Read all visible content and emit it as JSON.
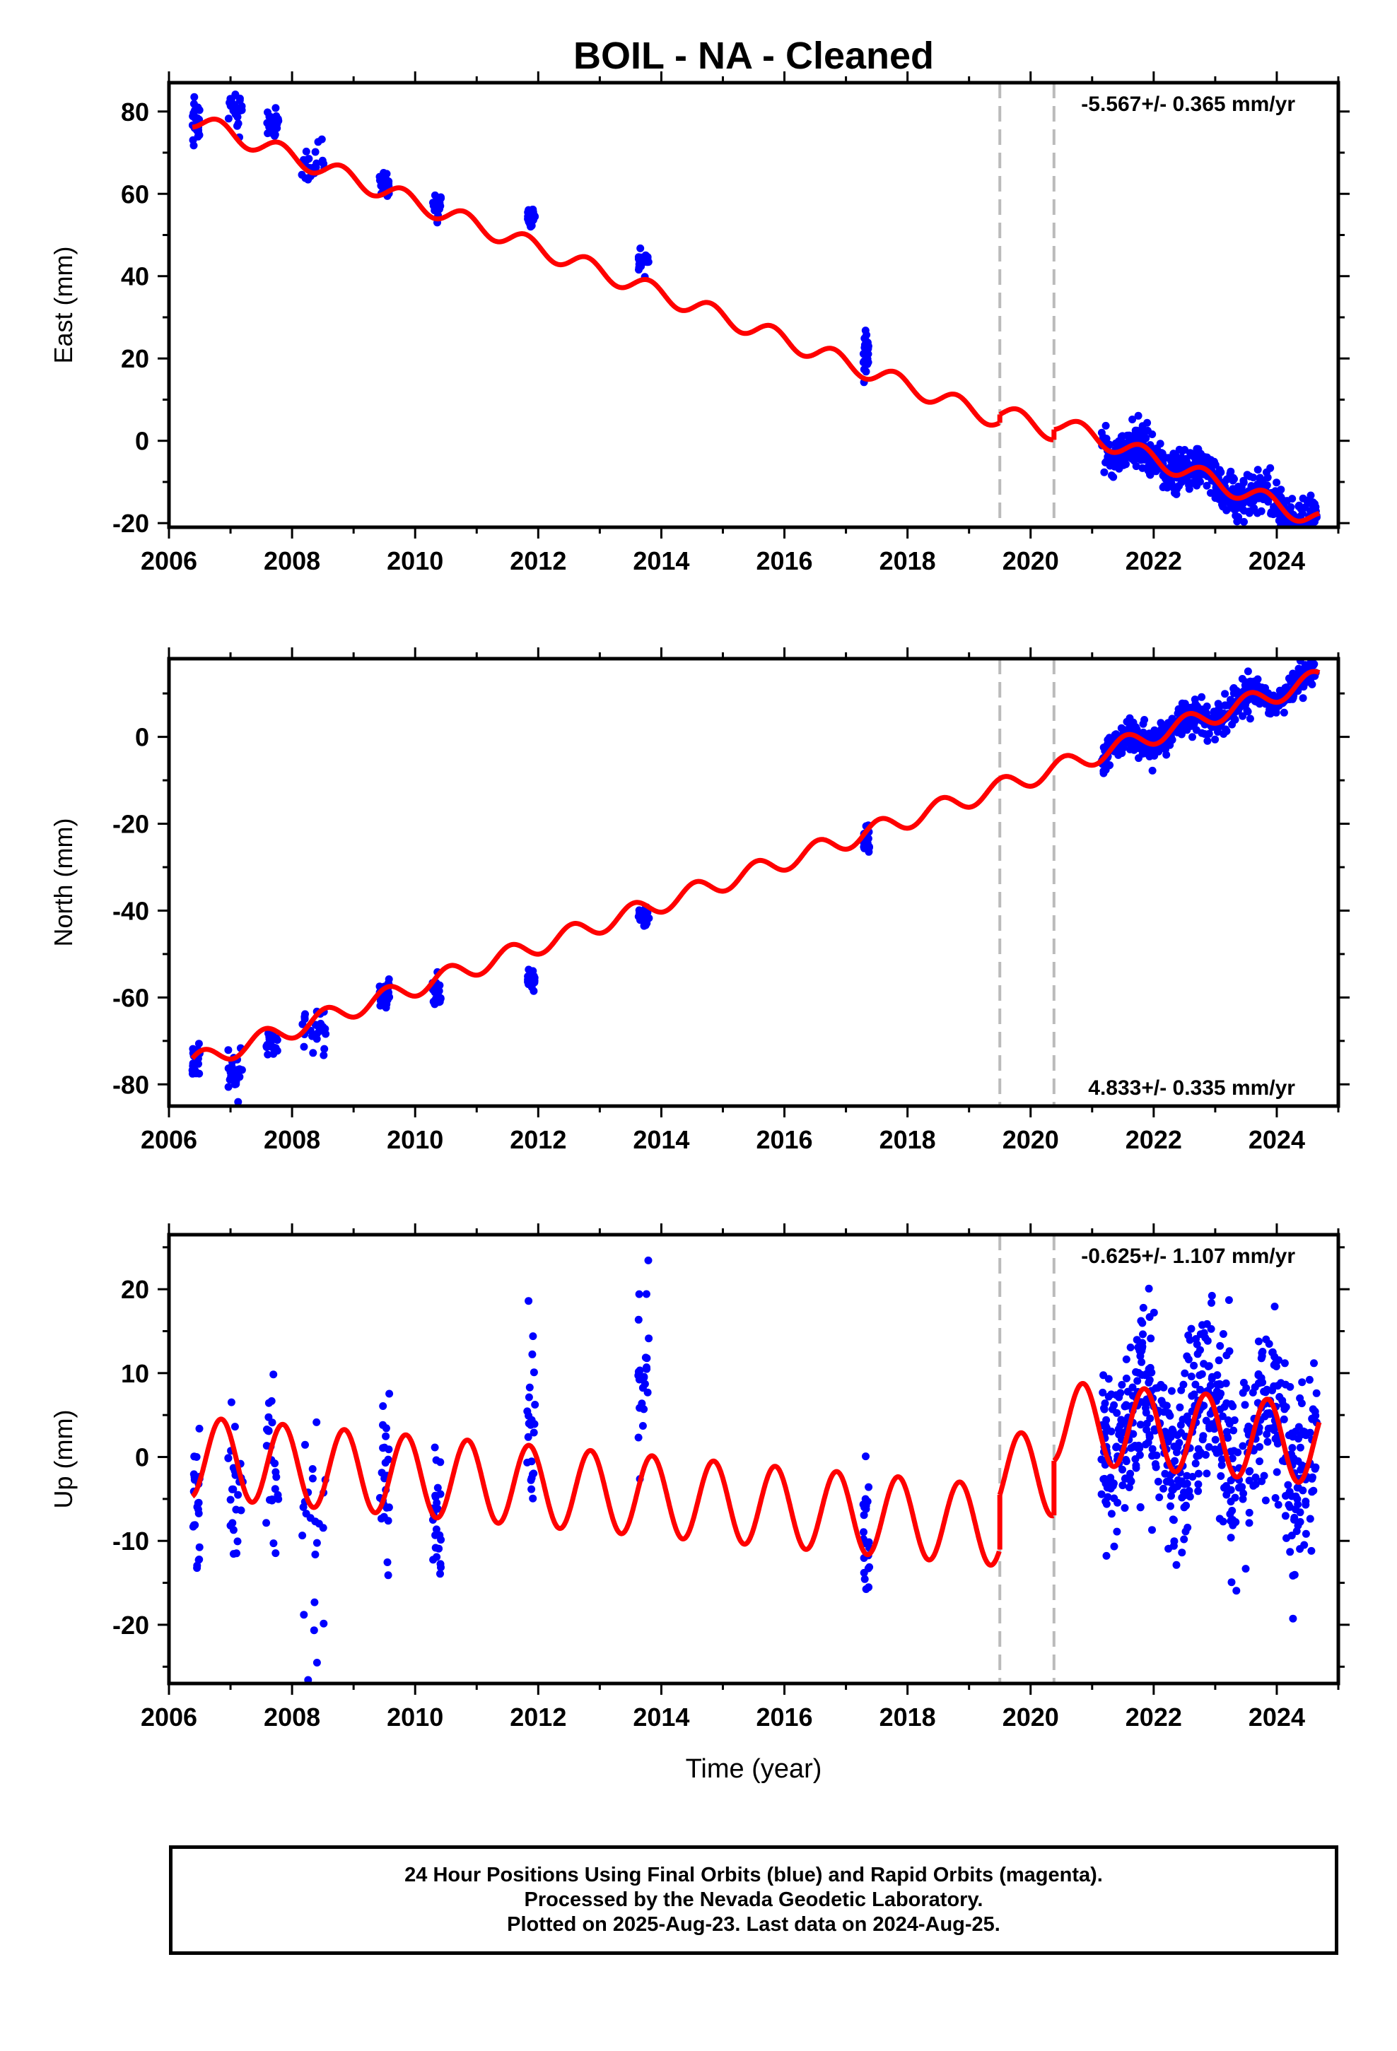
{
  "colors": {
    "final": "#0000ff",
    "model": "#ff0000",
    "dashed": "#bbbbbb"
  },
  "footer": {
    "line1": "24 Hour Positions Using Final Orbits (blue) and Rapid Orbits (magenta).",
    "line2": "Processed by the Nevada Geodetic Laboratory.",
    "line3": "Plotted on 2025-Aug-23. Last data on 2024-Aug-25."
  },
  "chart_data": [
    {
      "type": "scatter",
      "title": "BOIL  - NA - Cleaned",
      "xlabel": "",
      "ylabel": "East (mm)",
      "xlim": [
        2006.0,
        2025.0
      ],
      "ylim": [
        -21,
        87
      ],
      "yticks": [
        -20,
        0,
        20,
        40,
        60,
        80
      ],
      "xticks": [
        2006,
        2008,
        2010,
        2012,
        2014,
        2016,
        2018,
        2020,
        2022,
        2024
      ],
      "annotation": "-5.567+/- 0.365 mm/yr",
      "rate_mm_per_yr": -5.567,
      "offsets": [
        2019.5,
        2020.38
      ],
      "model": {
        "value_at_2006_4": 78,
        "slope": -5.567,
        "seasonal_amp": 2.2,
        "seasonal_peak": 0.8,
        "steps": [
          {
            "year": 2019.5,
            "delta": 2.0
          },
          {
            "year": 2020.38,
            "delta": 2.5
          }
        ]
      },
      "series": [
        {
          "name": "Final Orbits",
          "clusters": [
            {
              "start": 2006.38,
              "end": 2006.5,
              "center": 77,
              "spread": 2.5
            },
            {
              "start": 2006.95,
              "end": 2007.2,
              "center": 81,
              "spread": 2.2
            },
            {
              "start": 2007.58,
              "end": 2007.78,
              "center": 77,
              "spread": 2.0
            },
            {
              "start": 2008.15,
              "end": 2008.55,
              "center": 68,
              "spread": 2.5
            },
            {
              "start": 2009.42,
              "end": 2009.58,
              "center": 63,
              "spread": 1.8
            },
            {
              "start": 2010.28,
              "end": 2010.42,
              "center": 57.5,
              "spread": 1.8
            },
            {
              "start": 2011.82,
              "end": 2011.95,
              "center": 54.5,
              "spread": 1.6
            },
            {
              "start": 2013.62,
              "end": 2013.8,
              "center": 43,
              "spread": 1.5
            },
            {
              "start": 2017.28,
              "end": 2017.38,
              "center": 21,
              "spread": 3.0
            },
            {
              "start": 2021.15,
              "end": 2024.65,
              "spread": 2.6
            }
          ]
        }
      ]
    },
    {
      "type": "scatter",
      "title": "",
      "xlabel": "",
      "ylabel": "North (mm)",
      "xlim": [
        2006.0,
        2025.0
      ],
      "ylim": [
        -85,
        18
      ],
      "yticks": [
        -80,
        -60,
        -40,
        -20,
        0
      ],
      "xticks": [
        2006,
        2008,
        2010,
        2012,
        2014,
        2016,
        2018,
        2020,
        2022,
        2024
      ],
      "annotation": "4.833+/- 0.335 mm/yr",
      "rate_mm_per_yr": 4.833,
      "offsets": [
        2019.5,
        2020.38
      ],
      "model": {
        "value_at_2006_4": -75,
        "slope": 4.833,
        "seasonal_amp": 2.2,
        "seasonal_peak": 0.55,
        "steps": []
      },
      "series": [
        {
          "name": "Final Orbits",
          "clusters": [
            {
              "start": 2006.38,
              "end": 2006.5,
              "center": -74.5,
              "spread": 2.0
            },
            {
              "start": 2006.95,
              "end": 2007.2,
              "center": -78,
              "spread": 2.5
            },
            {
              "start": 2007.58,
              "end": 2007.78,
              "center": -70,
              "spread": 1.6
            },
            {
              "start": 2008.15,
              "end": 2008.55,
              "center": -68,
              "spread": 3.0
            },
            {
              "start": 2009.42,
              "end": 2009.58,
              "center": -59,
              "spread": 1.6
            },
            {
              "start": 2010.28,
              "end": 2010.42,
              "center": -59,
              "spread": 1.6
            },
            {
              "start": 2011.82,
              "end": 2011.95,
              "center": -56,
              "spread": 1.4
            },
            {
              "start": 2013.62,
              "end": 2013.8,
              "center": -41.5,
              "spread": 1.5
            },
            {
              "start": 2017.28,
              "end": 2017.38,
              "center": -24,
              "spread": 1.5
            },
            {
              "start": 2021.15,
              "end": 2024.65,
              "spread": 1.8
            }
          ]
        }
      ]
    },
    {
      "type": "scatter",
      "title": "",
      "xlabel": "Time (year)",
      "ylabel": "Up (mm)",
      "xlim": [
        2006.0,
        2025.0
      ],
      "ylim": [
        -27,
        26.5
      ],
      "yticks": [
        -20,
        -10,
        0,
        10,
        20
      ],
      "xticks": [
        2006,
        2008,
        2010,
        2012,
        2014,
        2016,
        2018,
        2020,
        2022,
        2024
      ],
      "annotation": "-0.625+/- 1.107 mm/yr",
      "rate_mm_per_yr": -0.625,
      "offsets": [
        2019.5,
        2020.38
      ],
      "model": {
        "value_at_2006_4": 0.0,
        "slope": -0.625,
        "seasonal_amp": 4.8,
        "seasonal_peak": 0.85,
        "steps": [
          {
            "year": 2019.5,
            "delta": 6.5
          },
          {
            "year": 2020.38,
            "delta": 6.5
          }
        ]
      },
      "series": [
        {
          "name": "Final Orbits",
          "clusters": [
            {
              "start": 2006.38,
              "end": 2006.5,
              "center": -5,
              "spread": 5.5
            },
            {
              "start": 2006.95,
              "end": 2007.2,
              "center": -4,
              "spread": 5.0
            },
            {
              "start": 2007.58,
              "end": 2007.78,
              "center": -2,
              "spread": 4.5
            },
            {
              "start": 2008.15,
              "end": 2008.55,
              "center": -8,
              "spread": 7.0
            },
            {
              "start": 2009.42,
              "end": 2009.58,
              "center": -3,
              "spread": 5.0
            },
            {
              "start": 2010.28,
              "end": 2010.42,
              "center": -6,
              "spread": 4.5
            },
            {
              "start": 2011.82,
              "end": 2011.95,
              "center": 4,
              "spread": 6.0
            },
            {
              "start": 2013.62,
              "end": 2013.8,
              "center": 9,
              "spread": 5.5
            },
            {
              "start": 2017.28,
              "end": 2017.38,
              "center": -10,
              "spread": 5.0
            },
            {
              "start": 2021.15,
              "end": 2024.65,
              "spread": 5.5
            }
          ]
        }
      ]
    }
  ]
}
